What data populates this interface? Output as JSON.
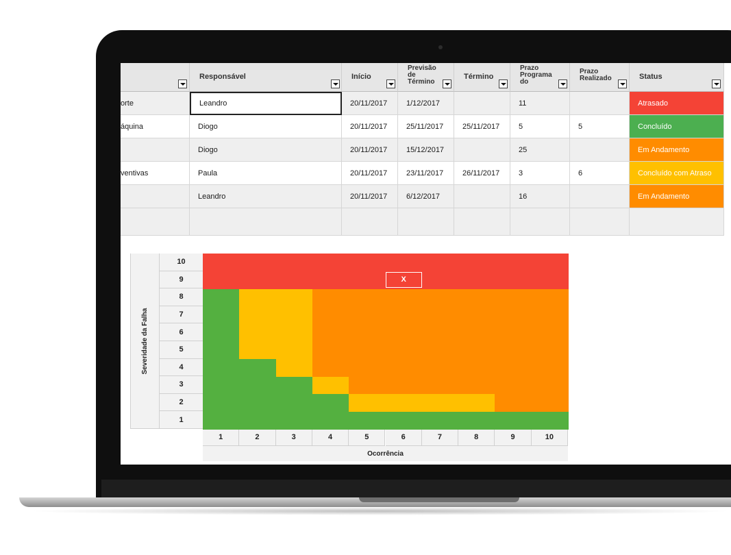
{
  "table": {
    "headers": {
      "activity": "",
      "responsavel": "Responsável",
      "inicio": "Início",
      "previsao": [
        "Previsão",
        "de",
        "Término"
      ],
      "termino": "Término",
      "prazo_programado": [
        "Prazo",
        "Programa",
        "do"
      ],
      "prazo_realizado": [
        "Prazo",
        "Realizado"
      ],
      "status": "Status"
    },
    "rows": [
      {
        "activity": "orte",
        "responsavel": "Leandro",
        "inicio": "20/11/2017",
        "previsao": "1/12/2017",
        "termino": "",
        "prazo_prog": "11",
        "prazo_real": "",
        "status": "Atrasado"
      },
      {
        "activity": "áquina",
        "responsavel": "Diogo",
        "inicio": "20/11/2017",
        "previsao": "25/11/2017",
        "termino": "25/11/2017",
        "prazo_prog": "5",
        "prazo_real": "5",
        "status": "Concluído"
      },
      {
        "activity": "",
        "responsavel": "Diogo",
        "inicio": "20/11/2017",
        "previsao": "15/12/2017",
        "termino": "",
        "prazo_prog": "25",
        "prazo_real": "",
        "status": "Em Andamento"
      },
      {
        "activity": "ventivas",
        "responsavel": "Paula",
        "inicio": "20/11/2017",
        "previsao": "23/11/2017",
        "termino": "26/11/2017",
        "prazo_prog": "3",
        "prazo_real": "6",
        "status": "Concluído com Atraso"
      },
      {
        "activity": "",
        "responsavel": "Leandro",
        "inicio": "20/11/2017",
        "previsao": "6/12/2017",
        "termino": "",
        "prazo_prog": "16",
        "prazo_real": "",
        "status": "Em Andamento"
      }
    ],
    "status_colors": {
      "Atrasado": "#f44336",
      "Concluído": "#4caf50",
      "Em Andamento": "#ff8c00",
      "Concluído com Atraso": "#ffc000"
    }
  },
  "matrix": {
    "y_axis_label": "Severidade da Falha",
    "x_axis_label": "Ocorrência",
    "y_ticks": [
      "10",
      "9",
      "8",
      "7",
      "6",
      "5",
      "4",
      "3",
      "2",
      "1"
    ],
    "x_ticks": [
      "1",
      "2",
      "3",
      "4",
      "5",
      "6",
      "7",
      "8",
      "9",
      "10"
    ],
    "marker": "X",
    "marker_position": {
      "ocorrencia": 6,
      "severidade": 9
    },
    "colors": {
      "red": "#f44336",
      "orange": "#ff8c00",
      "yellow": "#ffc000",
      "green": "#54b040"
    },
    "zones": {
      "red_from_severity": 9,
      "green_max_severity_by_occurrence": [
        8,
        4,
        3,
        2,
        1,
        1,
        1,
        1,
        1,
        1
      ],
      "yellow_max_severity_by_occurrence": [
        0,
        8,
        8,
        3,
        2,
        2,
        2,
        2,
        1,
        1
      ]
    }
  }
}
